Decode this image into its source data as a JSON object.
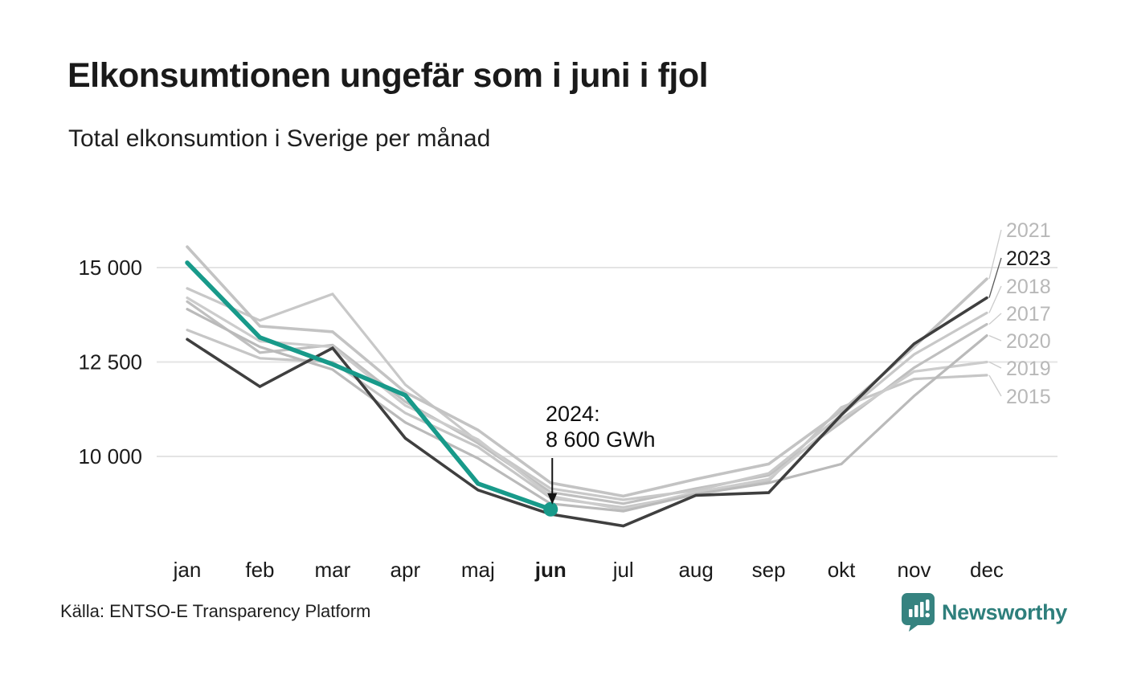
{
  "header": {
    "title": "Elkonsumtionen ungefär som i juni i fjol",
    "subtitle": "Total elkonsumtion i Sverige per månad"
  },
  "chart_data": {
    "type": "line",
    "title": "Total elkonsumtion i Sverige per månad",
    "unit": "GWh",
    "categories": [
      "jan",
      "feb",
      "mar",
      "apr",
      "maj",
      "jun",
      "jul",
      "aug",
      "sep",
      "okt",
      "nov",
      "dec"
    ],
    "highlight_month": "jun",
    "y_ticks": [
      "15 000",
      "12 500",
      "10 000"
    ],
    "y_tick_values": [
      15000,
      12500,
      10000
    ],
    "ylim": [
      8000,
      15800
    ],
    "grid": "horizontal",
    "legend_position": "right-edge-labels",
    "series": [
      {
        "name": "2015",
        "color": "#c6c6c6",
        "label_color": "#b8b8b8",
        "width": 3.2,
        "values": [
          13350,
          12600,
          12500,
          11150,
          10250,
          8900,
          8650,
          9000,
          9350,
          11300,
          12050,
          12150
        ]
      },
      {
        "name": "2017",
        "color": "#bfbfbf",
        "label_color": "#b8b8b8",
        "width": 3.2,
        "values": [
          14100,
          12750,
          12950,
          11450,
          10350,
          9050,
          8750,
          9150,
          9500,
          10900,
          12350,
          13500
        ]
      },
      {
        "name": "2018",
        "color": "#c8c8c8",
        "label_color": "#b8b8b8",
        "width": 3.2,
        "values": [
          14450,
          13600,
          14300,
          11900,
          10400,
          9150,
          8850,
          9100,
          9550,
          11100,
          12700,
          13800
        ]
      },
      {
        "name": "2019",
        "color": "#cccccc",
        "label_color": "#b8b8b8",
        "width": 3.2,
        "values": [
          14200,
          13050,
          12900,
          11350,
          10450,
          8950,
          8600,
          9050,
          9400,
          11000,
          12250,
          12500
        ]
      },
      {
        "name": "2020",
        "color": "#bababa",
        "label_color": "#b8b8b8",
        "width": 3.2,
        "values": [
          13900,
          12900,
          12300,
          10900,
          9950,
          8750,
          8550,
          9000,
          9300,
          9800,
          11600,
          13200
        ]
      },
      {
        "name": "2021",
        "color": "#c3c3c3",
        "label_color": "#b8b8b8",
        "width": 3.6,
        "values": [
          15550,
          13450,
          13300,
          11700,
          10700,
          9300,
          8950,
          9400,
          9800,
          11200,
          12900,
          14700
        ]
      },
      {
        "name": "2023",
        "color": "#3f3f3f",
        "label_color": "#1b1b1b",
        "width": 3.6,
        "emphasis": true,
        "values": [
          13100,
          11850,
          12870,
          10480,
          9110,
          8470,
          8160,
          8970,
          9040,
          11100,
          12980,
          14200
        ]
      },
      {
        "name": "2024",
        "color": "#189a8a",
        "width": 5.5,
        "emphasis": true,
        "end_dot": true,
        "values": [
          15130,
          13150,
          12440,
          11620,
          9280,
          8600
        ]
      }
    ],
    "right_labels_order": [
      "2021",
      "2023",
      "2018",
      "2017",
      "2020",
      "2019",
      "2015"
    ],
    "annotation": {
      "line1": "2024:",
      "line2": "8 600 GWh",
      "target_month": "jun",
      "target_value": 8600
    }
  },
  "annotation": {
    "line1": "2024:",
    "line2": "8 600 GWh"
  },
  "footer": {
    "source": "Källa: ENTSO-E Transparency Platform",
    "logo_text": "Newsworthy",
    "logo_color": "#368380"
  }
}
